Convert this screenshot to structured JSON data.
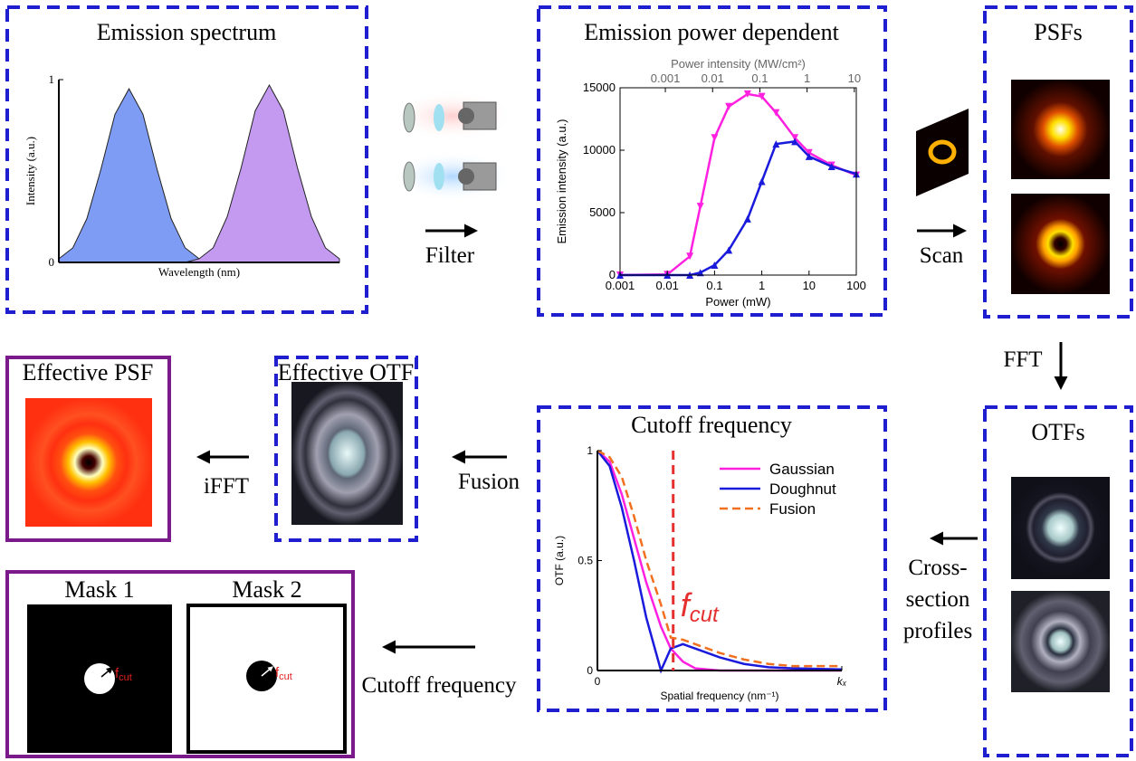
{
  "diagram": {
    "spectrum_title": "Emission spectrum",
    "power_title": "Emission power dependent",
    "psfs_title": "PSFs",
    "otfs_title": "OTFs",
    "cutoff_title": "Cutoff frequency",
    "effective_otf_title": "Effective OTF",
    "effective_psf_title": "Effective PSF",
    "mask1_title": "Mask 1",
    "mask2_title": "Mask 2",
    "mask_label": {
      "symbol": "f",
      "subscript": "cut"
    },
    "steps": {
      "filter": "Filter",
      "scan": "Scan",
      "fft": "FFT",
      "cross_section": [
        "Cross-",
        "section",
        "profiles"
      ],
      "fusion": "Fusion",
      "ifft": "iFFT",
      "cutoff": "Cutoff frequency"
    }
  },
  "chart_data": [
    {
      "type": "area",
      "x_label": "Wavelength (nm)",
      "y_label": "Intensity (a.u.)",
      "x": [
        0,
        0.05,
        0.1,
        0.15,
        0.2,
        0.25,
        0.3,
        0.35,
        0.4,
        0.45,
        0.5,
        0.55,
        0.6,
        0.65,
        0.7,
        0.75,
        0.8,
        0.85,
        0.9,
        0.95,
        1
      ],
      "xlim": [
        0,
        1
      ],
      "ylim": [
        0,
        1
      ],
      "yticks": [
        0,
        1
      ],
      "series": [
        {
          "color": "#7f9cf5",
          "values": [
            0.02,
            0.08,
            0.24,
            0.51,
            0.81,
            0.95,
            0.81,
            0.51,
            0.24,
            0.08,
            0.02,
            0,
            0,
            0,
            0,
            0,
            0,
            0,
            0,
            0,
            0
          ]
        },
        {
          "color": "#c39af0",
          "values": [
            0,
            0,
            0,
            0,
            0,
            0,
            0,
            0,
            0,
            0,
            0.02,
            0.08,
            0.25,
            0.52,
            0.83,
            0.97,
            0.83,
            0.52,
            0.25,
            0.08,
            0.02
          ]
        }
      ]
    },
    {
      "type": "line",
      "x_label": "Power (mW)",
      "y_label": "Emission intensity (a.u.)",
      "x2_label": "Power intensity (MW/cm²)",
      "xlog": true,
      "x": [
        0.001,
        0.01,
        0.03,
        0.05,
        0.1,
        0.2,
        0.5,
        1,
        2,
        5,
        10,
        30,
        100
      ],
      "xlim": [
        0.001,
        100
      ],
      "xticks": [
        0.001,
        0.01,
        0.1,
        1,
        10,
        100
      ],
      "x2lim": [
        0.00011,
        11
      ],
      "x2ticks": [
        0.001,
        0.01,
        0.1,
        1,
        10
      ],
      "ylim": [
        0,
        15000
      ],
      "yticks": [
        0,
        5000,
        10000,
        15000
      ],
      "series": [
        {
          "color": "#ff20e0",
          "marker": "triangle-down",
          "values": [
            0,
            50,
            1500,
            5500,
            11000,
            13500,
            14500,
            14300,
            13000,
            11000,
            9800,
            8800,
            8000
          ]
        },
        {
          "color": "#1a1adc",
          "marker": "triangle-up",
          "values": [
            0,
            0,
            0,
            200,
            800,
            2000,
            4500,
            7500,
            10500,
            10700,
            9500,
            8700,
            8100
          ]
        }
      ]
    },
    {
      "type": "line",
      "x_label": "Spatial frequency (nm⁻¹)",
      "y_label": "OTF (a.u.)",
      "x": [
        0,
        0.05,
        0.1,
        0.15,
        0.2,
        0.26,
        0.3,
        0.35,
        0.4,
        0.5,
        0.6,
        0.7,
        0.8,
        1
      ],
      "xlim": [
        0,
        1
      ],
      "xticks": [
        0,
        {
          "value": 1,
          "label": "kₓ"
        }
      ],
      "ylim": [
        0,
        1
      ],
      "yticks": [
        0,
        0.5,
        1
      ],
      "legend": "upper right",
      "cutoff_x": 0.31,
      "cutoff_color": "#e53030",
      "annotation": {
        "symbol": "f",
        "subscript": "cut"
      },
      "series": [
        {
          "name": "Gaussian",
          "color": "#ff20e0",
          "values": [
            1,
            0.95,
            0.8,
            0.6,
            0.4,
            0.2,
            0.1,
            0.04,
            0.01,
            0,
            0,
            0,
            0,
            0
          ]
        },
        {
          "name": "Doughnut",
          "color": "#1a1adc",
          "values": [
            1,
            0.93,
            0.74,
            0.5,
            0.24,
            0,
            0.1,
            0.12,
            0.1,
            0.06,
            0.03,
            0.015,
            0.01,
            0.005
          ]
        },
        {
          "name": "Fusion",
          "color": "#f07020",
          "dash": true,
          "values": [
            1,
            0.97,
            0.88,
            0.7,
            0.5,
            0.3,
            0.15,
            0.14,
            0.12,
            0.08,
            0.05,
            0.03,
            0.02,
            0.02
          ]
        }
      ]
    }
  ]
}
